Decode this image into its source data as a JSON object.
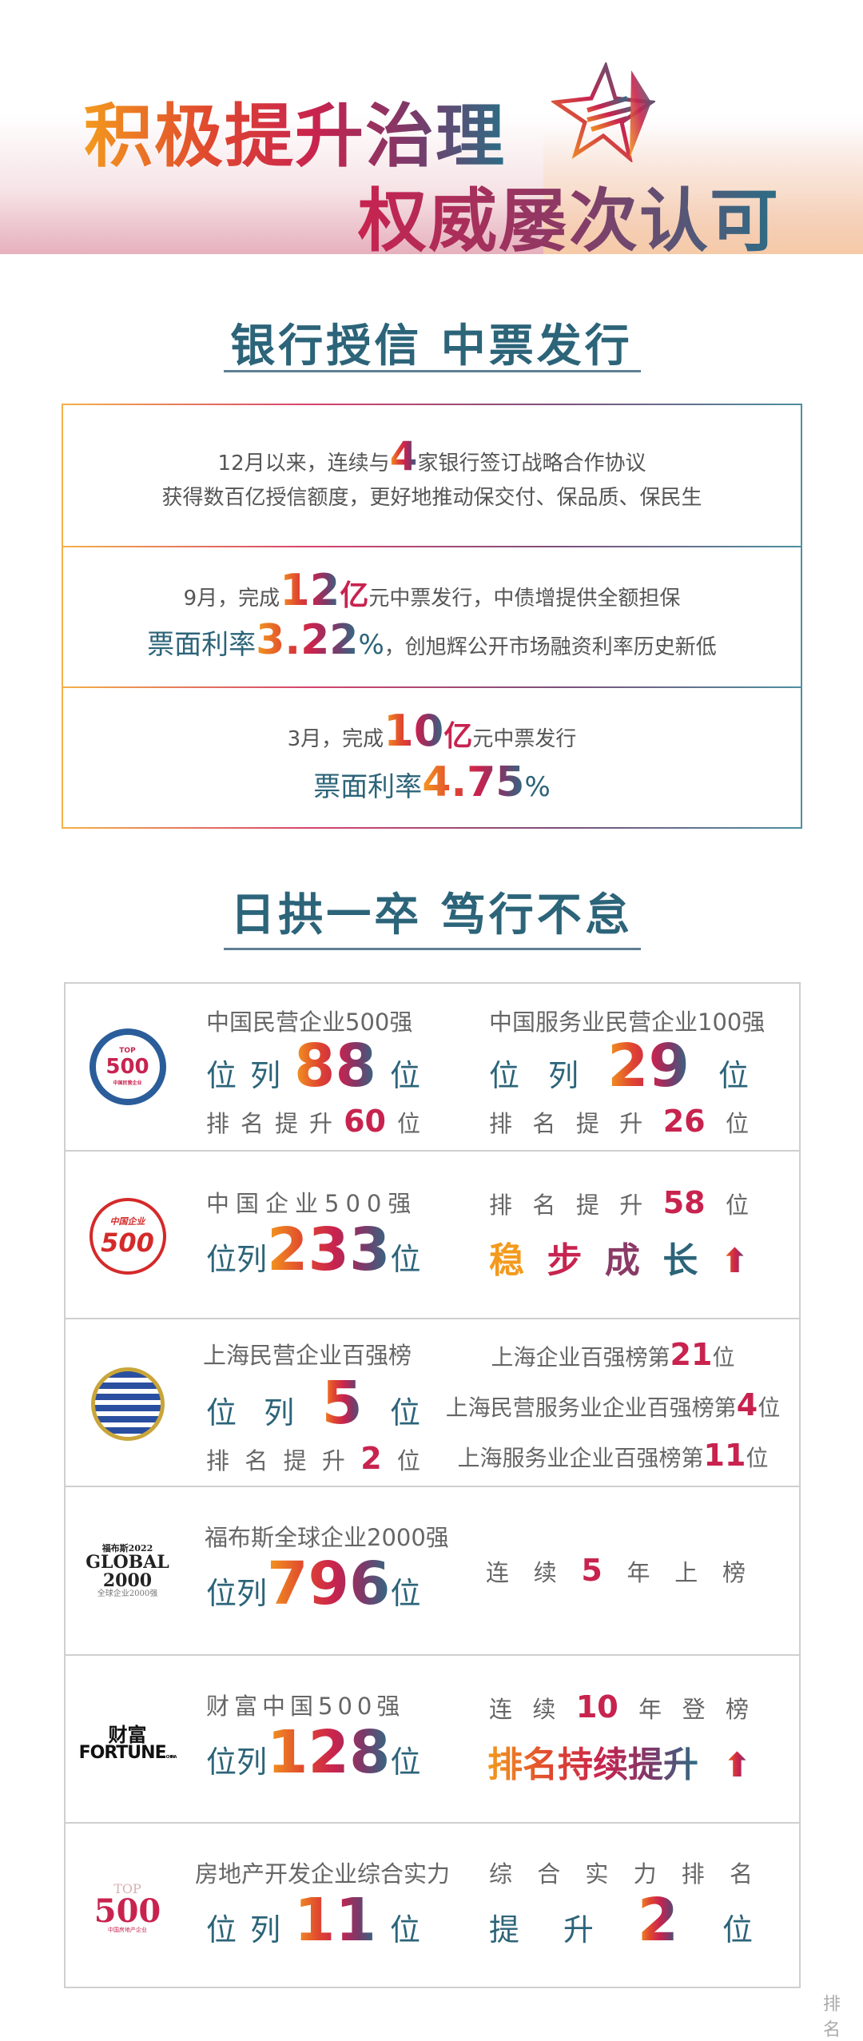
{
  "banner": {
    "title_line1": "积极提升治理",
    "title_line2": "权威屡次认可",
    "star_icon": "star-icon"
  },
  "section1": {
    "heading": "银行授信 中票发行",
    "rows": [
      {
        "l1_pre": "12月以来，连续与",
        "l1_num": "4",
        "l1_post": "家银行签订战略合作协议",
        "l2": "获得数百亿授信额度，更好地推动保交付、保品质、保民生"
      },
      {
        "l1_pre": "9月，完成",
        "l1_num": "12",
        "l1_unit": "亿",
        "l1_post": "元中票发行，中债增提供全额担保",
        "l2_pre": "票面利率",
        "l2_num": "3.22",
        "l2_unit": "%",
        "l2_post": "，创旭辉公开市场融资利率历史新低"
      },
      {
        "l1_pre": "3月，完成",
        "l1_num": "10",
        "l1_unit": "亿",
        "l1_post": "元中票发行",
        "l2_pre": "票面利率",
        "l2_num": "4.75",
        "l2_unit": "%"
      }
    ]
  },
  "section2": {
    "heading": "日拱一卒 笃行不怠",
    "rankings": [
      {
        "logo": {
          "top": "TOP",
          "num": "500",
          "sub": "中国民营企业"
        },
        "left": {
          "label": "中国民营企业500强",
          "pre": [
            "位",
            "列"
          ],
          "value": "88",
          "suf": "位",
          "sub": [
            "排",
            "名",
            "提",
            "升"
          ],
          "sub_value": "60",
          "sub_suf": "位"
        },
        "right": {
          "label": "中国服务业民营企业100强",
          "pre": [
            "位",
            "列"
          ],
          "value": "29",
          "suf": "位",
          "sub": [
            "排",
            "名",
            "提",
            "升"
          ],
          "sub_value": "26",
          "sub_suf": "位"
        }
      },
      {
        "logo": {
          "top": "中国企业",
          "num": "500"
        },
        "left": {
          "label": "中国企业500强",
          "pre": [
            "位",
            "列"
          ],
          "value": "233",
          "suf": "位"
        },
        "right": {
          "sub": [
            "排",
            "名",
            "提",
            "升"
          ],
          "sub_value": "58",
          "sub_suf": "位",
          "slogan": [
            "稳",
            "步",
            "成",
            "长"
          ]
        }
      },
      {
        "logo": {},
        "left": {
          "label": "上海民营企业百强榜",
          "pre": [
            "位",
            "列"
          ],
          "value": "5",
          "suf": "位",
          "sub": [
            "排",
            "名",
            "提",
            "升"
          ],
          "sub_value": "2",
          "sub_suf": "位"
        },
        "right": {
          "items": [
            {
              "text": "上海企业百强榜第",
              "num": "21",
              "suf": "位"
            },
            {
              "text": "上海民营服务业企业百强榜第",
              "num": "4",
              "suf": "位"
            },
            {
              "text": "上海服务业企业百强榜第",
              "num": "11",
              "suf": "位"
            }
          ]
        }
      },
      {
        "logo": {
          "l1": "福布斯2022",
          "l2": "GLOBAL",
          "l3": "2000",
          "l4": "全球企业2000强"
        },
        "left": {
          "label": "福布斯全球企业2000强",
          "pre": [
            "位",
            "列"
          ],
          "value": "796",
          "suf": "位"
        },
        "right": {
          "pre": [
            "连",
            "续"
          ],
          "value": "5",
          "suf": [
            "年",
            "上",
            "榜"
          ]
        }
      },
      {
        "logo": {
          "l1": "财富",
          "l2": "FORTUNE",
          "l3": "CHINA"
        },
        "left": {
          "label": "财富中国500强",
          "pre": [
            "位",
            "列"
          ],
          "value": "128",
          "suf": "位"
        },
        "right": {
          "pre": [
            "连",
            "续"
          ],
          "value": "10",
          "suf": [
            "年",
            "登",
            "榜"
          ],
          "slogan": "排名持续提升"
        }
      },
      {
        "logo": {
          "l1": "TOP",
          "l2": "500",
          "l3": "中国房地产企业"
        },
        "left": {
          "label": "房地产开发企业综合实力",
          "pre": [
            "位",
            "列"
          ],
          "value": "11",
          "suf": "位"
        },
        "right": {
          "label": [
            "综",
            "合",
            "实",
            "力",
            "排",
            "名"
          ],
          "pre": [
            "提",
            "升"
          ],
          "value": "2",
          "suf": "位"
        }
      }
    ]
  },
  "footer_partial": "排名",
  "colors": {
    "teal": "#2c6479",
    "crimson": "#c8234f",
    "orange": "#f39a1e",
    "gray": "#555555"
  }
}
